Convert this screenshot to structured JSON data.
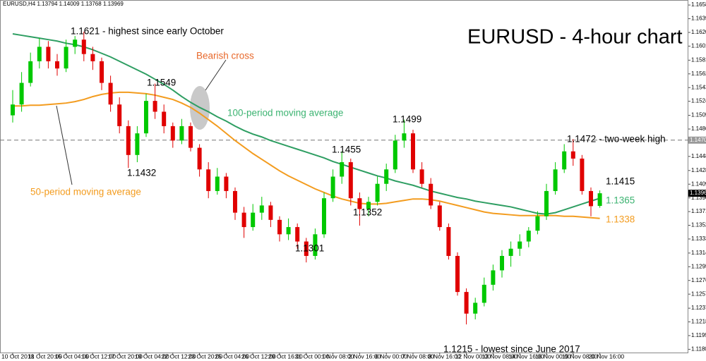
{
  "chart_data": {
    "type": "candlestick",
    "symbol": "EURUSD,H4",
    "title": "EURUSD - 4-hour chart",
    "up_color": "#00c800",
    "down_color": "#e00000",
    "categories": [
      "10 Oct 2018",
      null,
      null,
      "11 Oct 20:00",
      null,
      null,
      "15 Oct 04:00",
      null,
      null,
      "16 Oct 12:00",
      null,
      null,
      "17 Oct 20:00",
      null,
      null,
      "19 Oct 04:00",
      null,
      null,
      "22 Oct 12:00",
      null,
      null,
      "23 Oct 20:00",
      null,
      null,
      "25 Oct 04:00",
      null,
      null,
      "26 Oct 12:00",
      null,
      null,
      "29 Oct 16:00",
      null,
      null,
      "31 Oct 00:00",
      null,
      null,
      "1 Nov 08:00",
      null,
      null,
      "2 Nov 16:00",
      null,
      null,
      "6 Nov 00:00",
      null,
      null,
      "7 Nov 08:00",
      null,
      null,
      "8 Nov 16:00",
      null,
      null,
      "12 Nov 00:00",
      null,
      null,
      "13 Nov 08:00",
      null,
      null,
      "14 Nov 16:00",
      null,
      null,
      "16 Nov 00:00",
      null,
      null,
      "19 Nov 08:00",
      null,
      null,
      "20 Nov 16:00"
    ],
    "open": [
      1.1505,
      1.152,
      1.155,
      1.158,
      1.16,
      1.158,
      1.157,
      1.16,
      1.161,
      1.159,
      1.158,
      1.155,
      1.152,
      1.149,
      1.145,
      1.148,
      1.1525,
      1.151,
      1.149,
      1.147,
      1.149,
      1.146,
      1.143,
      1.14,
      1.142,
      1.14,
      1.137,
      1.135,
      1.137,
      1.138,
      1.136,
      1.134,
      1.135,
      1.133,
      1.131,
      1.134,
      1.139,
      1.142,
      1.144,
      1.139,
      1.1375,
      1.1385,
      1.141,
      1.143,
      1.147,
      1.148,
      1.143,
      1.141,
      1.138,
      1.135,
      1.131,
      1.126,
      1.123,
      1.1245,
      1.127,
      1.129,
      1.131,
      1.132,
      1.133,
      1.1345,
      1.1365,
      1.14,
      1.143,
      1.1455,
      1.1445,
      1.14,
      1.13794
    ],
    "high": [
      1.154,
      1.1565,
      1.1592,
      1.1612,
      1.1608,
      1.159,
      1.161,
      1.1615,
      1.1621,
      1.16,
      1.1585,
      1.156,
      1.153,
      1.1498,
      1.149,
      1.1535,
      1.1549,
      1.152,
      1.1495,
      1.15,
      1.1495,
      1.1465,
      1.144,
      1.1432,
      1.1425,
      1.1405,
      1.1378,
      1.1382,
      1.1392,
      1.1385,
      1.1365,
      1.1362,
      1.1355,
      1.1335,
      1.1348,
      1.1398,
      1.143,
      1.1455,
      1.1445,
      1.1398,
      1.1392,
      1.142,
      1.1438,
      1.1478,
      1.1499,
      1.1485,
      1.144,
      1.1418,
      1.1385,
      1.1355,
      1.1315,
      1.1265,
      1.1252,
      1.128,
      1.1298,
      1.1318,
      1.133,
      1.134,
      1.135,
      1.1372,
      1.141,
      1.144,
      1.1465,
      1.1472,
      1.145,
      1.1405,
      1.14009
    ],
    "low": [
      1.1495,
      1.151,
      1.1545,
      1.157,
      1.157,
      1.156,
      1.1565,
      1.159,
      1.158,
      1.1568,
      1.154,
      1.151,
      1.148,
      1.1432,
      1.144,
      1.1475,
      1.15,
      1.148,
      1.146,
      1.1465,
      1.1455,
      1.142,
      1.139,
      1.1395,
      1.139,
      1.136,
      1.1335,
      1.1345,
      1.136,
      1.135,
      1.133,
      1.1332,
      1.132,
      1.1301,
      1.1305,
      1.1335,
      1.1385,
      1.141,
      1.138,
      1.1352,
      1.1365,
      1.138,
      1.14,
      1.1425,
      1.146,
      1.1425,
      1.1405,
      1.1375,
      1.1345,
      1.1305,
      1.1255,
      1.1215,
      1.1222,
      1.124,
      1.1262,
      1.128,
      1.1295,
      1.131,
      1.1322,
      1.134,
      1.136,
      1.1395,
      1.1425,
      1.1435,
      1.1395,
      1.1365,
      1.13768
    ],
    "close": [
      1.152,
      1.155,
      1.158,
      1.16,
      1.158,
      1.157,
      1.16,
      1.161,
      1.159,
      1.158,
      1.155,
      1.152,
      1.149,
      1.145,
      1.148,
      1.1525,
      1.151,
      1.149,
      1.147,
      1.149,
      1.146,
      1.143,
      1.14,
      1.142,
      1.14,
      1.137,
      1.135,
      1.137,
      1.138,
      1.136,
      1.134,
      1.135,
      1.133,
      1.131,
      1.134,
      1.139,
      1.142,
      1.144,
      1.139,
      1.1375,
      1.1385,
      1.141,
      1.143,
      1.147,
      1.148,
      1.143,
      1.141,
      1.138,
      1.135,
      1.131,
      1.126,
      1.123,
      1.1245,
      1.127,
      1.129,
      1.131,
      1.132,
      1.133,
      1.1345,
      1.1365,
      1.14,
      1.143,
      1.1455,
      1.1445,
      1.14,
      1.1379,
      1.13969
    ],
    "series": [
      {
        "color": "#2e9e62",
        "values": [
          1.1618,
          1.1616,
          1.1614,
          1.1612,
          1.161,
          1.1608,
          1.1605,
          1.1603,
          1.16,
          1.1596,
          1.1591,
          1.1586,
          1.158,
          1.1574,
          1.1568,
          1.1562,
          1.1555,
          1.1548,
          1.154,
          1.1531,
          1.1523,
          1.1516,
          1.151,
          1.1503,
          1.1497,
          1.149,
          1.1484,
          1.1479,
          1.1475,
          1.147,
          1.1466,
          1.1462,
          1.1458,
          1.1454,
          1.145,
          1.1446,
          1.1441,
          1.1437,
          1.1433,
          1.1429,
          1.1425,
          1.1421,
          1.1418,
          1.1414,
          1.1411,
          1.1408,
          1.1404,
          1.14,
          1.1397,
          1.1394,
          1.1391,
          1.1389,
          1.1386,
          1.1384,
          1.1382,
          1.138,
          1.1378,
          1.1375,
          1.1372,
          1.1369,
          1.1368,
          1.137,
          1.1374,
          1.1378,
          1.1382,
          1.1386,
          1.139
        ]
      },
      {
        "color": "#f39c1f",
        "values": [
          1.1518,
          1.1518,
          1.1519,
          1.1519,
          1.152,
          1.1521,
          1.1522,
          1.1524,
          1.1527,
          1.1531,
          1.1534,
          1.1536,
          1.1537,
          1.1537,
          1.1536,
          1.1535,
          1.1533,
          1.153,
          1.1527,
          1.1522,
          1.1516,
          1.1508,
          1.1499,
          1.149,
          1.148,
          1.147,
          1.1461,
          1.1452,
          1.1444,
          1.1436,
          1.1428,
          1.1421,
          1.1415,
          1.1409,
          1.1403,
          1.1398,
          1.1393,
          1.1389,
          1.1386,
          1.1383,
          1.1382,
          1.1382,
          1.1383,
          1.1385,
          1.1387,
          1.1389,
          1.1389,
          1.1388,
          1.1386,
          1.1383,
          1.138,
          1.1377,
          1.1374,
          1.1371,
          1.1369,
          1.1368,
          1.1367,
          1.1366,
          1.1366,
          1.1366,
          1.1366,
          1.1366,
          1.1365,
          1.1365,
          1.1364,
          1.1363,
          1.1362
        ]
      }
    ],
    "ref_line": 1.14706,
    "ylim": [
      1.1176,
      1.1663
    ],
    "yticks": [
      {
        "value": 1.1658,
        "label": "1.16580"
      },
      {
        "value": 1.1639,
        "label": "1.16390"
      },
      {
        "value": 1.162,
        "label": "1.16200"
      },
      {
        "value": 1.1601,
        "label": "1.16010"
      },
      1.15815,
      1.15625,
      1.15435,
      1.15245,
      {
        "value": 1.1505,
        "label": "1.15050"
      },
      {
        "value": 1.1486,
        "label": "1.14860"
      },
      {
        "value": 1.1448,
        "label": "1.14480"
      },
      1.14285,
      1.14095,
      1.13905,
      1.13715,
      1.13525,
      1.13335,
      {
        "value": 1.1314,
        "label": "1.13140"
      },
      {
        "value": 1.1295,
        "label": "1.12950"
      },
      {
        "value": 1.1276,
        "label": "1.12760"
      },
      {
        "value": 1.1257,
        "label": "1.12570"
      },
      1.12375,
      1.12185,
      1.11995,
      1.11805
    ],
    "annotations": [
      {
        "text": "1.1621 - highest since early October"
      },
      {
        "text": "1.1549"
      },
      {
        "text": "1.1432"
      },
      {
        "text": "Bearish cross"
      },
      {
        "text": "100-period moving average"
      },
      {
        "text": "1.1499"
      },
      {
        "text": "1.1455"
      },
      {
        "text": "50-period moving average"
      },
      {
        "text": "1.1352"
      },
      {
        "text": "1.1301"
      },
      {
        "text": "1.1472 - two-week high"
      },
      {
        "text": "1.1415"
      },
      {
        "text": "1.1365"
      },
      {
        "text": "1.1338"
      },
      {
        "text": "1.1215 - lowest since June 2017"
      }
    ]
  }
}
